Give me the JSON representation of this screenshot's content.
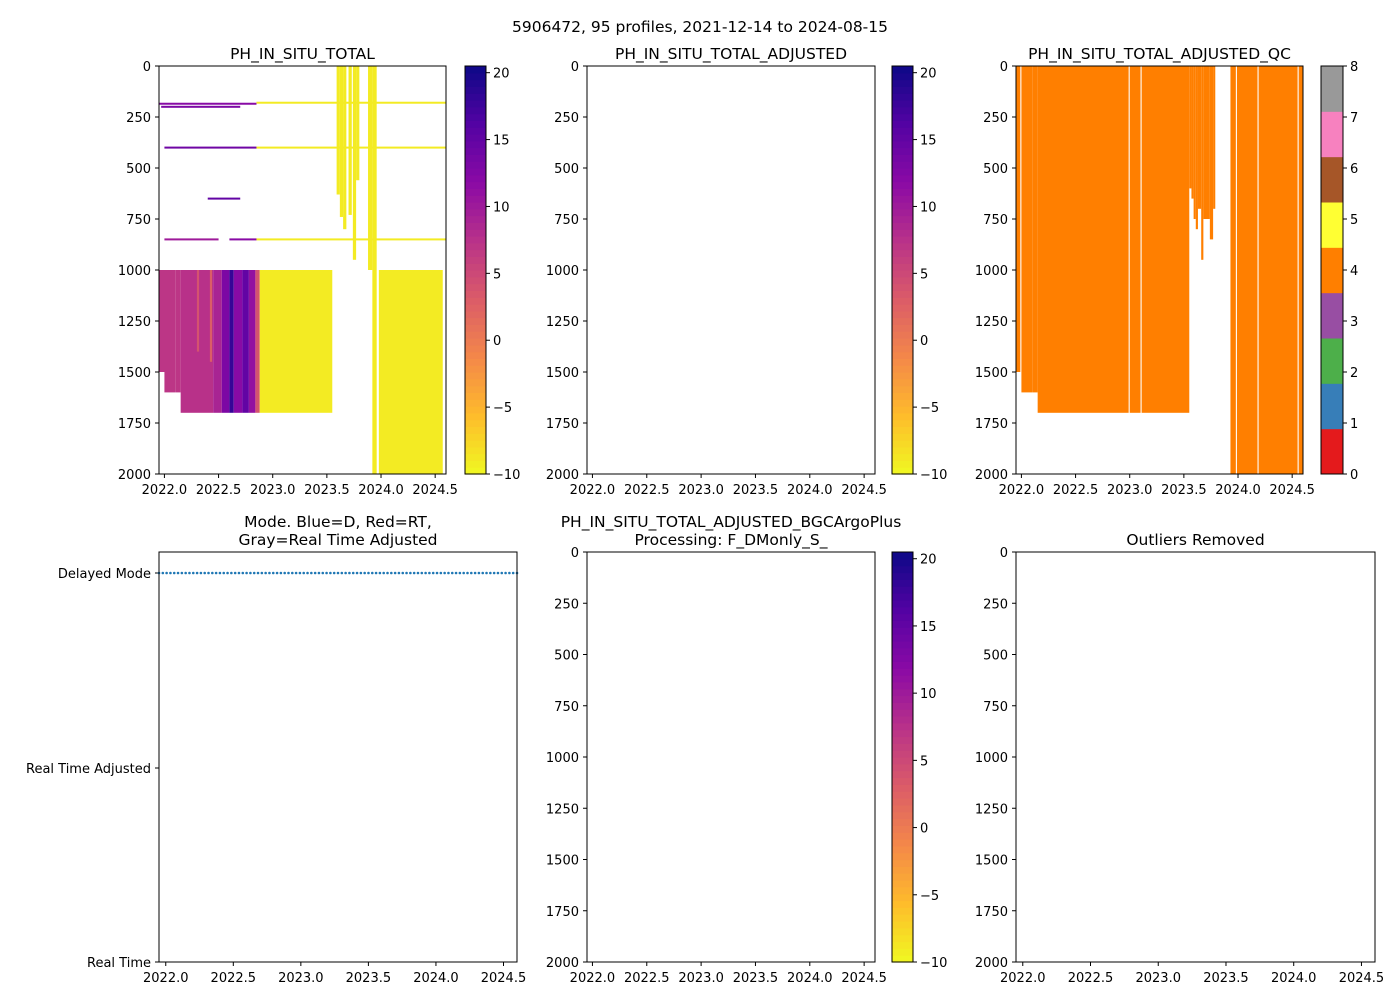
{
  "suptitle": "5906472, 95 profiles, 2021-12-14 to 2024-08-15",
  "colors": {
    "yellow": "#f0f921",
    "purple_light": "#b5419e",
    "purple": "#9c26a6",
    "purple_dark": "#5a02a3",
    "indigo": "#0d0887",
    "orange_qc": "#ff7f00",
    "mode_dots": "#1f77b4"
  },
  "chart_data": [
    {
      "id": "raw",
      "type": "heatmap",
      "title": "PH_IN_SITU_TOTAL",
      "xlim": [
        2021.95,
        2024.6
      ],
      "ylim": [
        2000,
        0
      ],
      "xticks": [
        "2022.0",
        "2022.5",
        "2023.0",
        "2023.5",
        "2024.0",
        "2024.5"
      ],
      "yticks": [
        "0",
        "250",
        "500",
        "750",
        "1000",
        "1250",
        "1500",
        "1750",
        "2000"
      ],
      "colorbar": {
        "min": -10,
        "max": 20.5,
        "ticks": [
          "−10",
          "−5",
          "0",
          "5",
          "10",
          "15",
          "20"
        ],
        "colormap": "plasma_r"
      },
      "blocks": [
        {
          "x0": 2021.95,
          "x1": 2022.1,
          "y0": 1000,
          "y1": 1500,
          "value": 7
        },
        {
          "x0": 2022.0,
          "x1": 2022.1,
          "y0": 1500,
          "y1": 1600,
          "value": 7
        },
        {
          "x0": 2022.1,
          "x1": 2022.15,
          "y0": 1000,
          "y1": 1600,
          "value": 7
        },
        {
          "x0": 2022.15,
          "x1": 2022.45,
          "y0": 1000,
          "y1": 1700,
          "value": 7.5
        },
        {
          "x0": 2022.45,
          "x1": 2022.53,
          "y0": 1000,
          "y1": 1700,
          "value": 9
        },
        {
          "x0": 2022.53,
          "x1": 2022.6,
          "y0": 1000,
          "y1": 1700,
          "value": 13
        },
        {
          "x0": 2022.6,
          "x1": 2022.64,
          "y0": 1000,
          "y1": 1700,
          "value": 18
        },
        {
          "x0": 2022.64,
          "x1": 2022.72,
          "y0": 1000,
          "y1": 1700,
          "value": 12
        },
        {
          "x0": 2022.72,
          "x1": 2022.78,
          "y0": 1000,
          "y1": 1700,
          "value": 15
        },
        {
          "x0": 2022.78,
          "x1": 2022.84,
          "y0": 1000,
          "y1": 1700,
          "value": 11
        },
        {
          "x0": 2022.84,
          "x1": 2022.88,
          "y0": 1000,
          "y1": 1700,
          "value": 4
        },
        {
          "x0": 2022.88,
          "x1": 2023.55,
          "y0": 1000,
          "y1": 1700,
          "value": -9
        },
        {
          "x0": 2023.59,
          "x1": 2023.62,
          "y0": 0,
          "y1": 630,
          "value": -9
        },
        {
          "x0": 2023.62,
          "x1": 2023.65,
          "y0": 0,
          "y1": 740,
          "value": -9
        },
        {
          "x0": 2023.65,
          "x1": 2023.68,
          "y0": 0,
          "y1": 800,
          "value": -9
        },
        {
          "x0": 2023.7,
          "x1": 2023.73,
          "y0": 0,
          "y1": 730,
          "value": -9
        },
        {
          "x0": 2023.74,
          "x1": 2023.77,
          "y0": 0,
          "y1": 950,
          "value": -9
        },
        {
          "x0": 2023.77,
          "x1": 2023.8,
          "y0": 0,
          "y1": 560,
          "value": -9
        },
        {
          "x0": 2023.88,
          "x1": 2023.92,
          "y0": 0,
          "y1": 1000,
          "value": -9
        },
        {
          "x0": 2023.92,
          "x1": 2023.96,
          "y0": 0,
          "y1": 2000,
          "value": -9
        },
        {
          "x0": 2023.98,
          "x1": 2024.57,
          "y0": 1000,
          "y1": 2000,
          "value": -9
        },
        {
          "x0": 2022.3,
          "x1": 2022.32,
          "y0": 1000,
          "y1": 1400,
          "value": 4
        },
        {
          "x0": 2022.42,
          "x1": 2022.44,
          "y0": 1000,
          "y1": 1450,
          "value": 3
        }
      ],
      "bands": [
        {
          "y": 185,
          "x0": 2021.95,
          "x1": 2022.85,
          "value": 12
        },
        {
          "y": 200,
          "x0": 2021.97,
          "x1": 2022.7,
          "value": 13
        },
        {
          "y": 180,
          "x0": 2022.85,
          "x1": 2024.6,
          "value": -9
        },
        {
          "y": 400,
          "x0": 2022.0,
          "x1": 2022.85,
          "value": 14
        },
        {
          "y": 400,
          "x0": 2022.85,
          "x1": 2024.6,
          "value": -9
        },
        {
          "y": 850,
          "x0": 2022.0,
          "x1": 2022.5,
          "value": 10
        },
        {
          "y": 850,
          "x0": 2022.6,
          "x1": 2022.85,
          "value": 12
        },
        {
          "y": 850,
          "x0": 2022.85,
          "x1": 2024.6,
          "value": -9
        },
        {
          "y": 650,
          "x0": 2022.4,
          "x1": 2022.7,
          "value": 15
        }
      ]
    },
    {
      "id": "adjusted",
      "type": "heatmap",
      "title": "PH_IN_SITU_TOTAL_ADJUSTED",
      "xlim": [
        2021.95,
        2024.6
      ],
      "ylim": [
        2000,
        0
      ],
      "xticks": [
        "2022.0",
        "2022.5",
        "2023.0",
        "2023.5",
        "2024.0",
        "2024.5"
      ],
      "yticks": [
        "0",
        "250",
        "500",
        "750",
        "1000",
        "1250",
        "1500",
        "1750",
        "2000"
      ],
      "colorbar": {
        "min": -10,
        "max": 20.5,
        "ticks": [
          "−10",
          "−5",
          "0",
          "5",
          "10",
          "15",
          "20"
        ],
        "colormap": "plasma_r"
      },
      "blocks": [],
      "bands": []
    },
    {
      "id": "qc",
      "type": "heatmap",
      "title": "PH_IN_SITU_TOTAL_ADJUSTED_QC",
      "xlim": [
        2021.95,
        2024.6
      ],
      "ylim": [
        2000,
        0
      ],
      "xticks": [
        "2022.0",
        "2022.5",
        "2023.0",
        "2023.5",
        "2024.0",
        "2024.5"
      ],
      "yticks": [
        "0",
        "250",
        "500",
        "750",
        "1000",
        "1250",
        "1500",
        "1750",
        "2000"
      ],
      "colorbar": {
        "type": "discrete",
        "ticks": [
          "0",
          "1",
          "2",
          "3",
          "4",
          "5",
          "6",
          "7",
          "8"
        ],
        "colors": [
          "#e41a1c",
          "#377eb8",
          "#4daf4a",
          "#984ea3",
          "#ff7f00",
          "#ffff33",
          "#a65628",
          "#f781bf",
          "#999999"
        ]
      },
      "qc_value": 4,
      "qc_columns": [
        {
          "x0": 2021.95,
          "x1": 2021.99,
          "bottom": 1500
        },
        {
          "x0": 2022.0,
          "x1": 2022.1,
          "bottom": 1600
        },
        {
          "x0": 2022.1,
          "x1": 2022.15,
          "bottom": 1600
        },
        {
          "x0": 2022.15,
          "x1": 2022.99,
          "bottom": 1700
        },
        {
          "x0": 2023.0,
          "x1": 2023.1,
          "bottom": 1700
        },
        {
          "x0": 2023.11,
          "x1": 2023.55,
          "bottom": 1700
        },
        {
          "x0": 2023.55,
          "x1": 2023.57,
          "bottom": 600
        },
        {
          "x0": 2023.57,
          "x1": 2023.59,
          "bottom": 650
        },
        {
          "x0": 2023.59,
          "x1": 2023.61,
          "bottom": 750
        },
        {
          "x0": 2023.61,
          "x1": 2023.63,
          "bottom": 800
        },
        {
          "x0": 2023.63,
          "x1": 2023.66,
          "bottom": 700
        },
        {
          "x0": 2023.66,
          "x1": 2023.68,
          "bottom": 950
        },
        {
          "x0": 2023.68,
          "x1": 2023.74,
          "bottom": 750
        },
        {
          "x0": 2023.74,
          "x1": 2023.77,
          "bottom": 850
        },
        {
          "x0": 2023.77,
          "x1": 2023.79,
          "bottom": 700
        },
        {
          "x0": 2023.93,
          "x1": 2023.98,
          "bottom": 2000
        },
        {
          "x0": 2023.99,
          "x1": 2024.18,
          "bottom": 2000
        },
        {
          "x0": 2024.19,
          "x1": 2024.55,
          "bottom": 2000
        },
        {
          "x0": 2024.56,
          "x1": 2024.6,
          "bottom": 2000
        }
      ]
    },
    {
      "id": "mode",
      "type": "scatter",
      "title": "Mode. Blue=D, Red=RT,\nGray=Real Time Adjusted",
      "title_lines": [
        "Mode. Blue=D, Red=RT,",
        "Gray=Real Time Adjusted"
      ],
      "xlim": [
        2021.95,
        2024.6
      ],
      "xticks": [
        "2022.0",
        "2022.5",
        "2023.0",
        "2023.5",
        "2024.0",
        "2024.5"
      ],
      "ylabels": [
        "Delayed Mode",
        "Real Time Adjusted",
        "Real Time"
      ],
      "series": [
        {
          "name": "D",
          "y": "Delayed Mode",
          "x_start": 2021.95,
          "x_end": 2024.6,
          "count": 95
        }
      ]
    },
    {
      "id": "bgc",
      "type": "heatmap",
      "title": "PH_IN_SITU_TOTAL_ADJUSTED_BGCArgoPlus\nProcessing: F_DMonly_S_",
      "title_lines": [
        "PH_IN_SITU_TOTAL_ADJUSTED_BGCArgoPlus",
        "Processing: F_DMonly_S_"
      ],
      "xlim": [
        2021.95,
        2024.6
      ],
      "ylim": [
        2000,
        0
      ],
      "xticks": [
        "2022.0",
        "2022.5",
        "2023.0",
        "2023.5",
        "2024.0",
        "2024.5"
      ],
      "yticks": [
        "0",
        "250",
        "500",
        "750",
        "1000",
        "1250",
        "1500",
        "1750",
        "2000"
      ],
      "colorbar": {
        "min": -10,
        "max": 20.5,
        "ticks": [
          "−10",
          "−5",
          "0",
          "5",
          "10",
          "15",
          "20"
        ],
        "colormap": "plasma_r"
      },
      "blocks": [],
      "bands": []
    },
    {
      "id": "outliers",
      "type": "scatter",
      "title": "Outliers Removed",
      "xlim": [
        2021.95,
        2024.6
      ],
      "ylim": [
        2000,
        0
      ],
      "xticks": [
        "2022.0",
        "2022.5",
        "2023.0",
        "2023.5",
        "2024.0",
        "2024.5"
      ],
      "yticks": [
        "0",
        "250",
        "500",
        "750",
        "1000",
        "1250",
        "1500",
        "1750",
        "2000"
      ],
      "points": []
    }
  ]
}
